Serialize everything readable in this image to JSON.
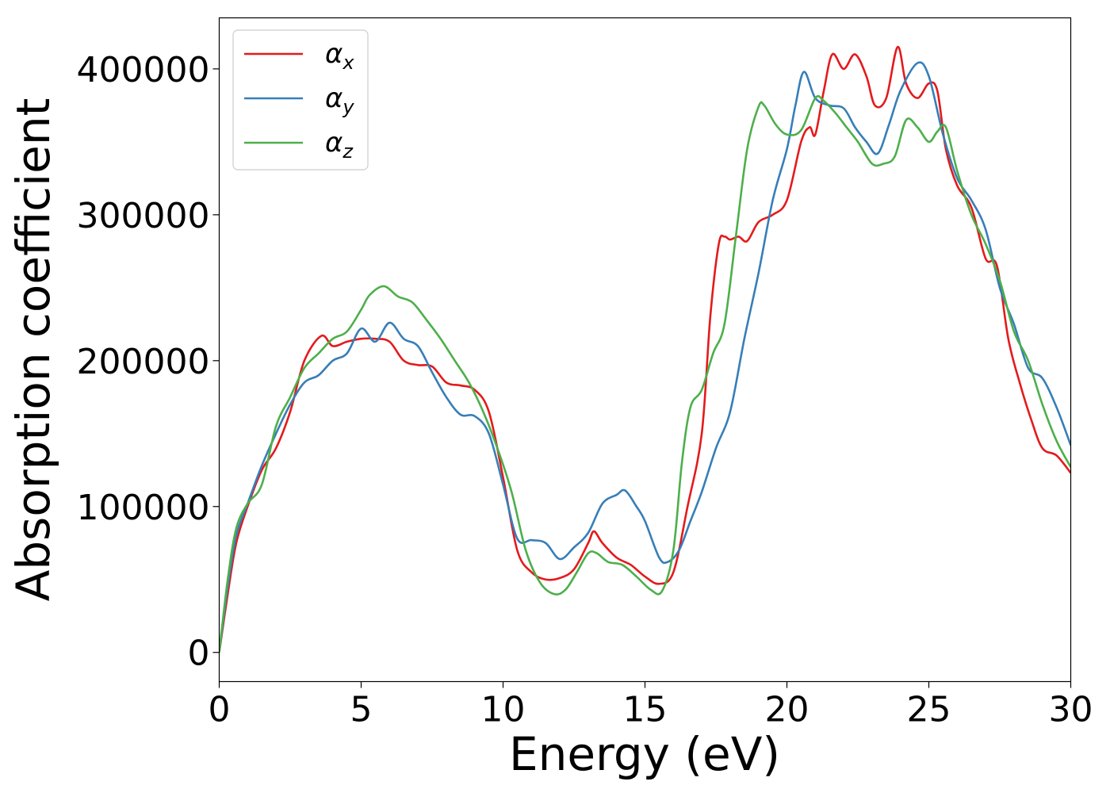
{
  "chart_data": {
    "type": "line",
    "title": "",
    "xlabel": "Energy (eV)",
    "ylabel": "Absorption coefficient",
    "xlim": [
      0,
      30
    ],
    "ylim": [
      -20000,
      435000
    ],
    "xticks": [
      0,
      5,
      10,
      15,
      20,
      25,
      30
    ],
    "xtick_labels": [
      "0",
      "5",
      "10",
      "15",
      "20",
      "25",
      "30"
    ],
    "yticks": [
      0,
      100000,
      200000,
      300000,
      400000
    ],
    "ytick_labels": [
      "0",
      "100000",
      "200000",
      "300000",
      "400000"
    ],
    "grid": false,
    "legend_position": "upper-left",
    "series": [
      {
        "name": "αx",
        "legend_symbol": "α",
        "legend_subscript": "x",
        "color": "#e41a1c",
        "x": [
          0,
          0.3,
          0.6,
          1.0,
          1.5,
          2.0,
          2.5,
          3.0,
          3.6,
          4.0,
          4.5,
          5.0,
          5.5,
          6.0,
          6.5,
          7.0,
          7.5,
          8.0,
          8.5,
          9.0,
          9.5,
          10.0,
          10.5,
          11.0,
          11.5,
          12.0,
          12.5,
          13.0,
          13.2,
          13.5,
          14.0,
          14.5,
          15.0,
          15.5,
          16.0,
          16.5,
          17.0,
          17.3,
          17.6,
          17.8,
          18.0,
          18.3,
          18.6,
          19.0,
          19.5,
          20.0,
          20.5,
          20.8,
          21.0,
          21.3,
          21.6,
          22.0,
          22.4,
          22.8,
          23.1,
          23.5,
          23.9,
          24.2,
          24.6,
          25.0,
          25.3,
          25.6,
          26.0,
          26.5,
          27.0,
          27.4,
          27.8,
          28.2,
          28.6,
          29.0,
          29.5,
          30.0
        ],
        "y": [
          0,
          40000,
          75000,
          100000,
          125000,
          140000,
          165000,
          200000,
          217000,
          210000,
          213000,
          215000,
          215000,
          213000,
          200000,
          197000,
          196000,
          185000,
          183000,
          180000,
          165000,
          120000,
          70000,
          55000,
          50000,
          51000,
          57000,
          75000,
          83000,
          75000,
          65000,
          60000,
          52000,
          47000,
          55000,
          100000,
          150000,
          230000,
          280000,
          285000,
          283000,
          285000,
          282000,
          295000,
          300000,
          310000,
          350000,
          360000,
          355000,
          385000,
          410000,
          400000,
          410000,
          395000,
          375000,
          380000,
          415000,
          390000,
          380000,
          390000,
          385000,
          345000,
          320000,
          305000,
          270000,
          265000,
          215000,
          185000,
          160000,
          140000,
          135000,
          123000
        ]
      },
      {
        "name": "αy",
        "legend_symbol": "α",
        "legend_subscript": "y",
        "color": "#377eb8",
        "x": [
          0,
          0.3,
          0.6,
          1.0,
          1.5,
          2.0,
          2.5,
          3.0,
          3.5,
          4.0,
          4.5,
          5.0,
          5.5,
          6.0,
          6.5,
          7.0,
          7.5,
          8.0,
          8.5,
          9.0,
          9.5,
          10.0,
          10.5,
          11.0,
          11.5,
          12.0,
          12.5,
          13.0,
          13.5,
          14.0,
          14.3,
          14.7,
          15.0,
          15.5,
          15.8,
          16.2,
          16.6,
          17.0,
          17.5,
          18.0,
          18.5,
          19.0,
          19.5,
          20.0,
          20.3,
          20.6,
          21.0,
          21.5,
          22.0,
          22.4,
          22.8,
          23.2,
          23.6,
          24.0,
          24.6,
          25.0,
          25.5,
          26.0,
          26.5,
          27.0,
          27.5,
          28.0,
          28.5,
          29.0,
          29.5,
          30.0
        ],
        "y": [
          0,
          45000,
          80000,
          102000,
          128000,
          150000,
          170000,
          185000,
          190000,
          200000,
          205000,
          222000,
          213000,
          226000,
          215000,
          210000,
          192000,
          175000,
          163000,
          162000,
          150000,
          115000,
          78000,
          77000,
          75000,
          64000,
          72000,
          82000,
          102000,
          108000,
          111000,
          100000,
          90000,
          65000,
          62000,
          70000,
          90000,
          110000,
          140000,
          165000,
          215000,
          260000,
          310000,
          345000,
          375000,
          398000,
          380000,
          375000,
          373000,
          360000,
          350000,
          342000,
          362000,
          385000,
          404000,
          395000,
          355000,
          325000,
          310000,
          290000,
          250000,
          225000,
          195000,
          188000,
          168000,
          142000
        ]
      },
      {
        "name": "αz",
        "legend_symbol": "α",
        "legend_subscript": "z",
        "color": "#4daf4a",
        "x": [
          0,
          0.3,
          0.6,
          1.0,
          1.5,
          2.0,
          2.5,
          3.0,
          3.5,
          4.0,
          4.5,
          5.0,
          5.3,
          5.8,
          6.3,
          6.8,
          7.3,
          7.8,
          8.3,
          8.8,
          9.3,
          9.8,
          10.3,
          10.8,
          11.3,
          11.8,
          12.2,
          12.6,
          13.0,
          13.3,
          13.7,
          14.2,
          14.7,
          15.2,
          15.6,
          16.0,
          16.3,
          16.6,
          17.0,
          17.4,
          17.8,
          18.2,
          18.6,
          19.0,
          19.2,
          19.6,
          20.0,
          20.5,
          21.0,
          21.3,
          21.7,
          22.1,
          22.5,
          23.0,
          23.4,
          23.8,
          24.2,
          24.6,
          25.0,
          25.3,
          25.6,
          26.0,
          26.5,
          27.0,
          27.5,
          28.0,
          28.5,
          29.0,
          29.5,
          30.0
        ],
        "y": [
          0,
          50000,
          85000,
          102000,
          115000,
          155000,
          175000,
          195000,
          205000,
          215000,
          220000,
          235000,
          245000,
          251000,
          244000,
          240000,
          228000,
          215000,
          200000,
          185000,
          165000,
          140000,
          110000,
          70000,
          48000,
          40000,
          43000,
          55000,
          68000,
          68000,
          62000,
          60000,
          52000,
          43000,
          42000,
          70000,
          130000,
          168000,
          180000,
          205000,
          225000,
          285000,
          345000,
          374000,
          375000,
          362000,
          355000,
          358000,
          380000,
          378000,
          370000,
          360000,
          350000,
          335000,
          335000,
          340000,
          365000,
          360000,
          350000,
          357000,
          360000,
          330000,
          300000,
          280000,
          255000,
          220000,
          200000,
          170000,
          145000,
          127000
        ]
      }
    ]
  }
}
